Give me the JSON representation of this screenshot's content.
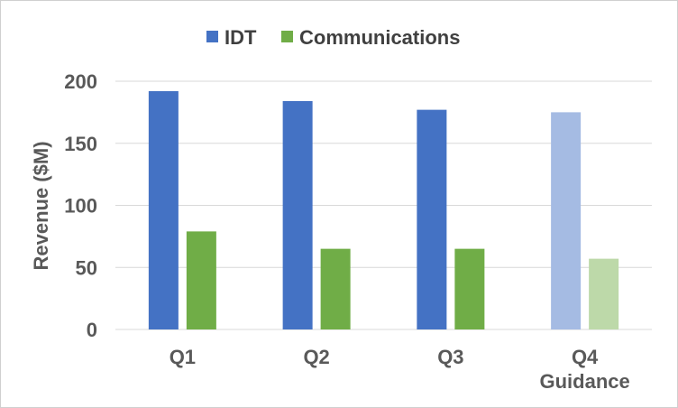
{
  "chart_data": {
    "type": "bar",
    "categories": [
      "Q1",
      "Q2",
      "Q3",
      "Q4\nGuidance"
    ],
    "series": [
      {
        "name": "IDT",
        "values": [
          192,
          184,
          177,
          175
        ],
        "color": "#4472C4",
        "highlight_last_color": "#A5BBE3"
      },
      {
        "name": "Communications",
        "values": [
          79,
          65,
          65,
          57
        ],
        "color": "#70AD47",
        "highlight_last_color": "#BDD9A9"
      }
    ],
    "title": "",
    "xlabel": "",
    "ylabel": "Revenue ($M)",
    "ylim": [
      0,
      200
    ],
    "yticks": [
      0,
      50,
      100,
      150,
      200
    ],
    "grid": true,
    "legend": "top-center"
  }
}
